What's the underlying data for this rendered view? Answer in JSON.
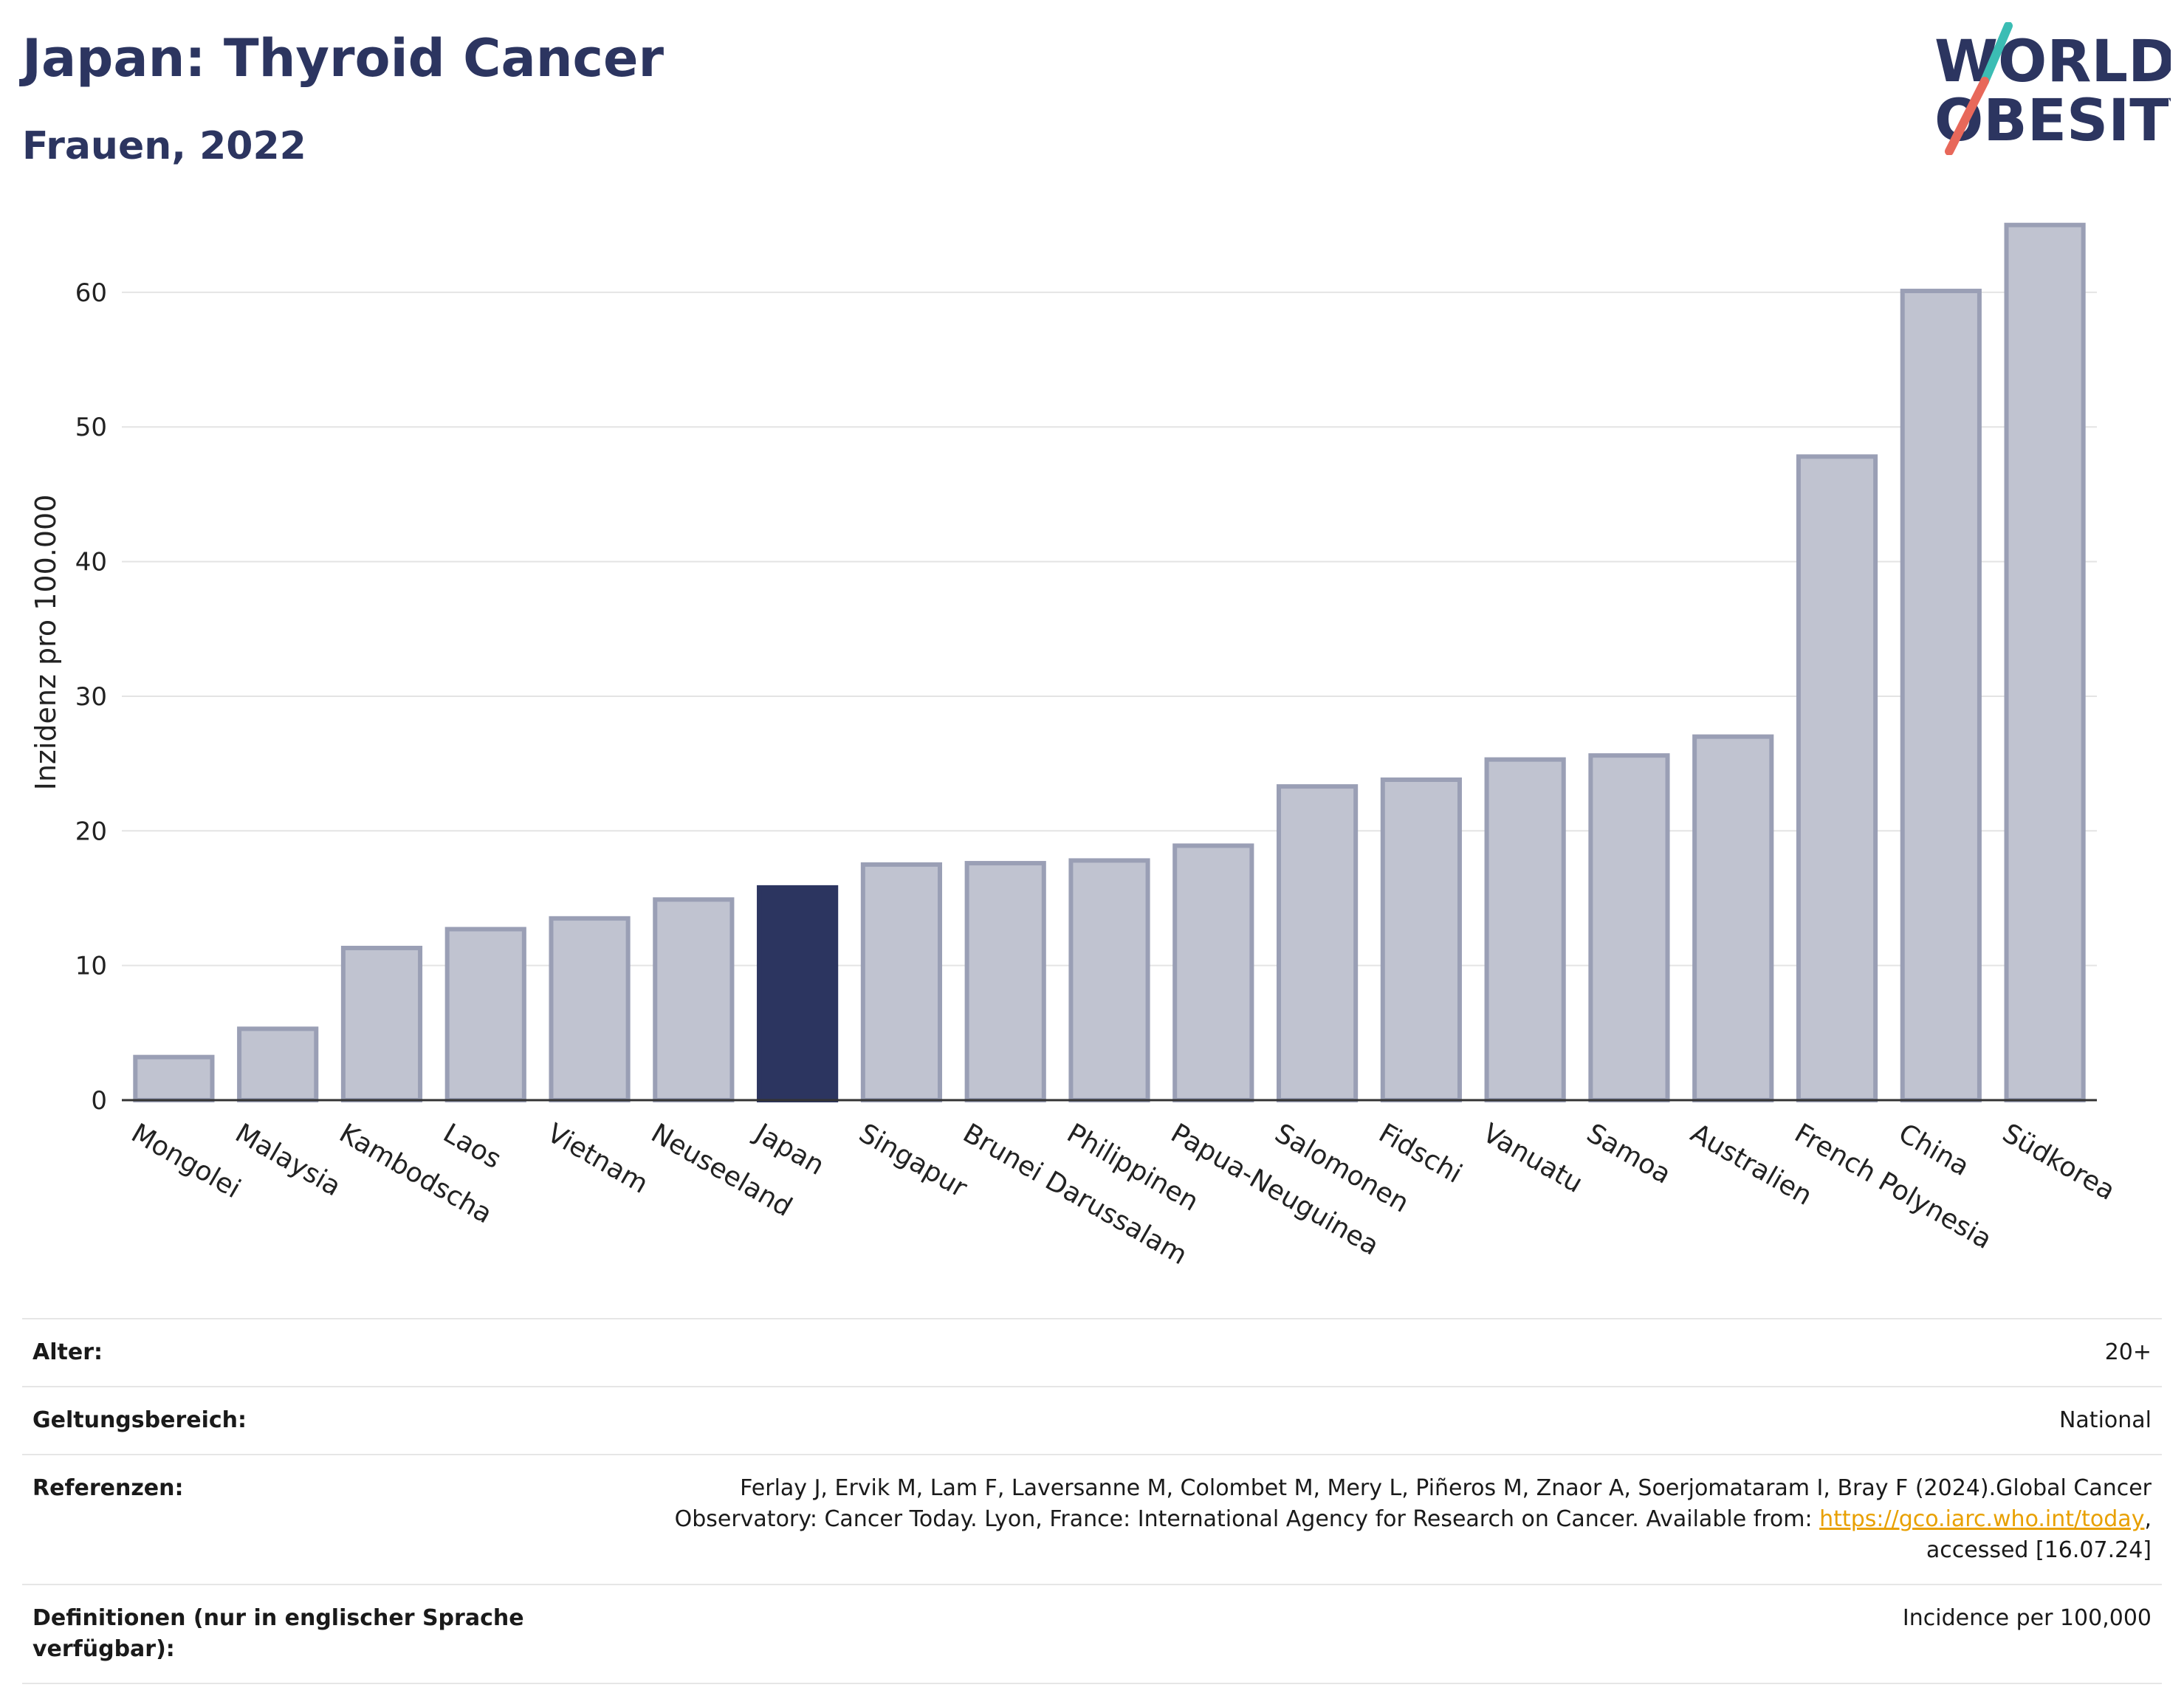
{
  "header": {
    "title": "Japan: Thyroid Cancer",
    "subtitle": "Frauen, 2022"
  },
  "logo": {
    "line1": "WORLD",
    "line2": "OBESITY",
    "slash_colors": [
      "#3bbdb4",
      "#e8685a"
    ]
  },
  "chart_data": {
    "type": "bar",
    "title": "Japan: Thyroid Cancer",
    "subtitle": "Frauen, 2022",
    "ylabel": "Inzidenz pro 100.000",
    "xlabel": "",
    "ylim": [
      0,
      68
    ],
    "yticks": [
      0,
      10,
      20,
      30,
      40,
      50,
      60
    ],
    "grid": true,
    "highlight": "Japan",
    "colors": {
      "bar": "#c0c3d0",
      "bar_edge": "#9a9fb5",
      "highlight": "#2c3560"
    },
    "categories": [
      "Mongolei",
      "Malaysia",
      "Kambodscha",
      "Laos",
      "Vietnam",
      "Neuseeland",
      "Japan",
      "Singapur",
      "Brunei Darussalam",
      "Philippinen",
      "Papua-Neuguinea",
      "Salomonen",
      "Fidschi",
      "Vanuatu",
      "Samoa",
      "Australien",
      "French Polynesia",
      "China",
      "Südkorea"
    ],
    "values": [
      3.2,
      5.3,
      11.3,
      12.7,
      13.5,
      14.9,
      15.8,
      17.5,
      17.6,
      17.8,
      18.9,
      23.3,
      23.8,
      25.3,
      25.6,
      27.0,
      47.8,
      60.1,
      65.0
    ]
  },
  "meta": {
    "age_label": "Alter:",
    "age_value": "20+",
    "scope_label": "Geltungsbereich:",
    "scope_value": "National",
    "refs_label": "Referenzen:",
    "refs_line1": "Ferlay J, Ervik M, Lam F, Laversanne M, Colombet M, Mery L, Piñeros M, Znaor A, Soerjomataram I, Bray F (2024).Global Cancer",
    "refs_line2_pre": "Observatory: Cancer Today. Lyon, France: International Agency for Research on Cancer. Available from: ",
    "refs_link": "https://gco.iarc.who.int/today",
    "refs_line2_post": ",",
    "refs_line3": "accessed [16.07.24]",
    "defs_label": "Definitionen (nur in englischer Sprache verfügbar):",
    "defs_value": "Incidence per 100,000"
  }
}
